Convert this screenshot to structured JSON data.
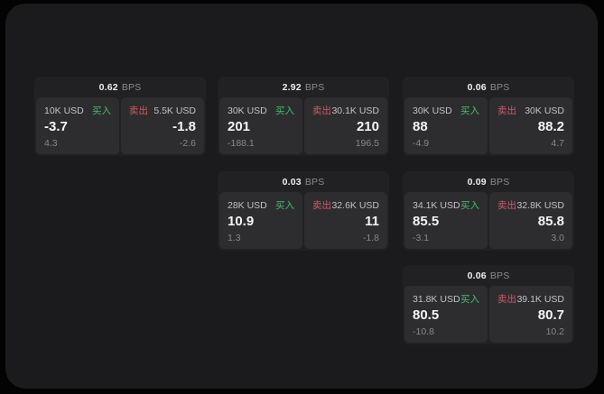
{
  "colors": {
    "page_bg": "#030303",
    "panel_bg": "#1b1b1d",
    "card_bg": "#212123",
    "cell_bg": "#2d2d2f",
    "buy_green": "#45bd72",
    "sell_red": "#cd5a67",
    "text_primary": "#f4f4f5",
    "text_secondary": "#c2c2c6",
    "text_muted": "#87878c"
  },
  "labels": {
    "bps": "BPS",
    "buy": "买入",
    "sell": "卖出"
  },
  "cards": [
    {
      "bps": "0.62",
      "buy": {
        "amount": "10K USD",
        "value": "-3.7",
        "sub": "4.3"
      },
      "sell": {
        "amount": "5.5K USD",
        "value": "-1.8",
        "sub": "-2.6"
      }
    },
    {
      "bps": "2.92",
      "buy": {
        "amount": "30K USD",
        "value": "201",
        "sub": "-188.1"
      },
      "sell": {
        "amount": "30.1K USD",
        "value": "210",
        "sub": "196.5"
      }
    },
    {
      "bps": "0.06",
      "buy": {
        "amount": "30K USD",
        "value": "88",
        "sub": "-4.9"
      },
      "sell": {
        "amount": "30K USD",
        "value": "88.2",
        "sub": "4.7"
      }
    },
    {
      "bps": "0.03",
      "buy": {
        "amount": "28K USD",
        "value": "10.9",
        "sub": "1.3"
      },
      "sell": {
        "amount": "32.6K USD",
        "value": "11",
        "sub": "-1.8"
      }
    },
    {
      "bps": "0.09",
      "buy": {
        "amount": "34.1K USD",
        "value": "85.5",
        "sub": "-3.1"
      },
      "sell": {
        "amount": "32.8K USD",
        "value": "85.8",
        "sub": "3.0"
      }
    },
    {
      "bps": "0.06",
      "buy": {
        "amount": "31.8K USD",
        "value": "80.5",
        "sub": "-10.8"
      },
      "sell": {
        "amount": "39.1K USD",
        "value": "80.7",
        "sub": "10.2"
      }
    }
  ]
}
